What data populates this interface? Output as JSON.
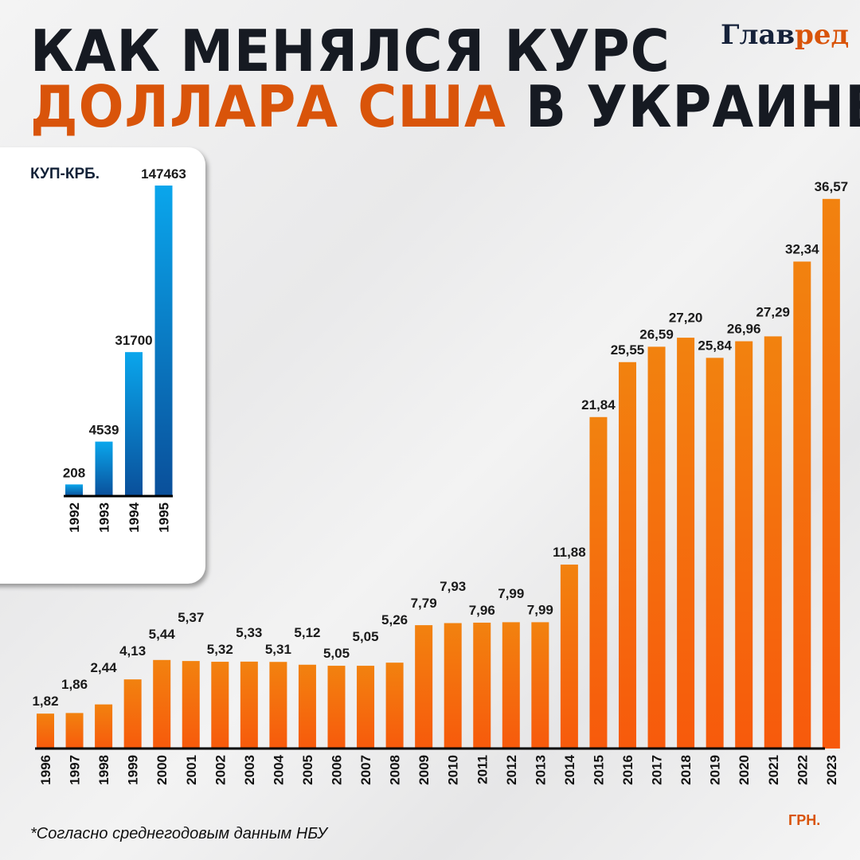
{
  "title": {
    "line1": "КАК МЕНЯЛСЯ КУРС",
    "line2_orange": "ДОЛЛАРА США",
    "line2_rest": " В УКРАИНЕ"
  },
  "logo": {
    "part1": "Глав",
    "part2": "ред"
  },
  "footnote": "*Согласно среднегодовым данным НБУ",
  "colors": {
    "accent": "#d9540a",
    "main_bars": "#f57a12",
    "inset_bars": "#0d73c4",
    "title": "#161a22"
  },
  "chart_data": [
    {
      "type": "bar",
      "unit": "КУП-КРБ.",
      "categories": [
        "1992",
        "1993",
        "1994",
        "1995"
      ],
      "values": [
        208,
        4539,
        31700,
        147463
      ],
      "labels": [
        "208",
        "4539",
        "31700",
        "147463"
      ],
      "scale": "nonlinear",
      "grid": false
    },
    {
      "type": "bar",
      "unit": "ГРН.",
      "categories": [
        "1996",
        "1997",
        "1998",
        "1999",
        "2000",
        "2001",
        "2002",
        "2003",
        "2004",
        "2005",
        "2006",
        "2007",
        "2008",
        "2009",
        "2010",
        "2011",
        "2012",
        "2013",
        "2014",
        "2015",
        "2016",
        "2017",
        "2018",
        "2019",
        "2020",
        "2021",
        "2022",
        "2023"
      ],
      "values": [
        1.82,
        1.86,
        2.44,
        4.13,
        5.44,
        5.37,
        5.32,
        5.33,
        5.31,
        5.12,
        5.05,
        5.05,
        5.26,
        7.79,
        7.93,
        7.96,
        7.99,
        7.99,
        11.88,
        21.84,
        25.55,
        26.59,
        27.2,
        25.84,
        26.96,
        27.29,
        32.34,
        36.57
      ],
      "labels": [
        "1,82",
        "1,86",
        "2,44",
        "4,13",
        "5,44",
        "5,37",
        "5,32",
        "5,33",
        "5,31",
        "5,12",
        "5,05",
        "5,05",
        "5,26",
        "7,79",
        "7,93",
        "7,96",
        "7,99",
        "7,99",
        "11,88",
        "21,84",
        "25,55",
        "26,59",
        "27,20",
        "25,84",
        "26,96",
        "27,29",
        "32,34",
        "36,57"
      ],
      "grid": false
    }
  ]
}
